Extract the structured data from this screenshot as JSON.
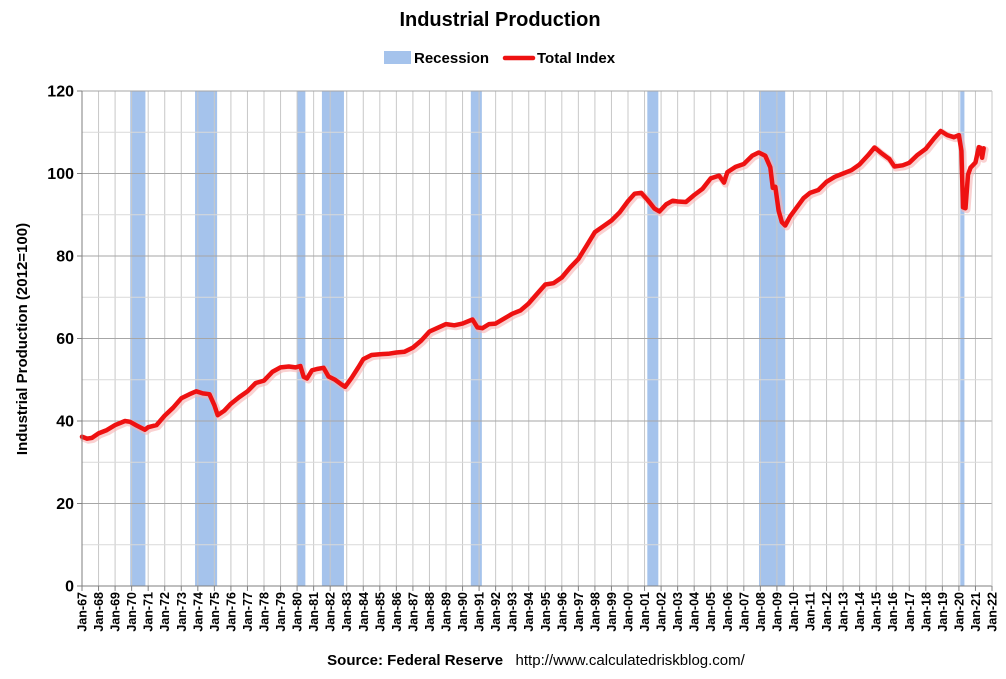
{
  "chart_data": {
    "type": "line",
    "title": "Industrial Production",
    "ylabel": "Industrial Production (2012=100)",
    "xlabel": "",
    "ylim": [
      0,
      120
    ],
    "yticks": [
      0,
      20,
      40,
      60,
      80,
      100,
      120
    ],
    "xlim": [
      1967.0,
      2022.0
    ],
    "xtick_labels": [
      "Jan-67",
      "Jan-68",
      "Jan-69",
      "Jan-70",
      "Jan-71",
      "Jan-72",
      "Jan-73",
      "Jan-74",
      "Jan-75",
      "Jan-76",
      "Jan-77",
      "Jan-78",
      "Jan-79",
      "Jan-80",
      "Jan-81",
      "Jan-82",
      "Jan-83",
      "Jan-84",
      "Jan-85",
      "Jan-86",
      "Jan-87",
      "Jan-88",
      "Jan-89",
      "Jan-90",
      "Jan-91",
      "Jan-92",
      "Jan-93",
      "Jan-94",
      "Jan-95",
      "Jan-96",
      "Jan-97",
      "Jan-98",
      "Jan-99",
      "Jan-00",
      "Jan-01",
      "Jan-02",
      "Jan-03",
      "Jan-04",
      "Jan-05",
      "Jan-06",
      "Jan-07",
      "Jan-08",
      "Jan-09",
      "Jan-10",
      "Jan-11",
      "Jan-12",
      "Jan-13",
      "Jan-14",
      "Jan-15",
      "Jan-16",
      "Jan-17",
      "Jan-18",
      "Jan-19",
      "Jan-20",
      "Jan-21",
      "Jan-22"
    ],
    "grid": true,
    "legend": {
      "placement": "top-center",
      "recession_label": "Recession",
      "series_label": "Total Index"
    },
    "colors": {
      "recession": "#a5c3ec",
      "line": "#ee1111",
      "grid": "#c8c8c8",
      "axis": "#7f7f7f"
    },
    "recessions": [
      [
        1969.917,
        1970.833
      ],
      [
        1973.833,
        1975.167
      ],
      [
        1980.0,
        1980.5
      ],
      [
        1981.5,
        1982.833
      ],
      [
        1990.5,
        1991.167
      ],
      [
        2001.167,
        2001.833
      ],
      [
        2007.917,
        2009.5
      ],
      [
        2020.083,
        2020.333
      ]
    ],
    "series": [
      {
        "name": "Total Index",
        "points": [
          [
            1967.0,
            36.2
          ],
          [
            1967.3,
            35.7
          ],
          [
            1967.6,
            35.9
          ],
          [
            1968.0,
            37.0
          ],
          [
            1968.5,
            37.8
          ],
          [
            1969.0,
            39.0
          ],
          [
            1969.6,
            40.0
          ],
          [
            1969.9,
            39.8
          ],
          [
            1970.3,
            38.9
          ],
          [
            1970.8,
            37.9
          ],
          [
            1971.0,
            38.5
          ],
          [
            1971.5,
            39.0
          ],
          [
            1972.0,
            41.3
          ],
          [
            1972.5,
            43.2
          ],
          [
            1973.0,
            45.5
          ],
          [
            1973.5,
            46.5
          ],
          [
            1973.9,
            47.2
          ],
          [
            1974.3,
            46.7
          ],
          [
            1974.7,
            46.5
          ],
          [
            1975.0,
            43.8
          ],
          [
            1975.2,
            41.4
          ],
          [
            1975.6,
            42.5
          ],
          [
            1976.0,
            44.2
          ],
          [
            1976.5,
            45.8
          ],
          [
            1977.0,
            47.2
          ],
          [
            1977.5,
            49.2
          ],
          [
            1978.0,
            49.8
          ],
          [
            1978.5,
            51.9
          ],
          [
            1979.0,
            53.0
          ],
          [
            1979.5,
            53.2
          ],
          [
            1979.9,
            53.0
          ],
          [
            1980.2,
            53.3
          ],
          [
            1980.4,
            50.7
          ],
          [
            1980.6,
            50.3
          ],
          [
            1980.9,
            52.3
          ],
          [
            1981.2,
            52.6
          ],
          [
            1981.6,
            52.9
          ],
          [
            1981.9,
            50.8
          ],
          [
            1982.3,
            50.0
          ],
          [
            1982.7,
            48.8
          ],
          [
            1982.9,
            48.3
          ],
          [
            1983.3,
            50.5
          ],
          [
            1983.7,
            53.0
          ],
          [
            1984.0,
            55.0
          ],
          [
            1984.5,
            56.0
          ],
          [
            1985.0,
            56.2
          ],
          [
            1985.5,
            56.3
          ],
          [
            1986.0,
            56.6
          ],
          [
            1986.5,
            56.8
          ],
          [
            1987.0,
            57.8
          ],
          [
            1987.5,
            59.5
          ],
          [
            1988.0,
            61.7
          ],
          [
            1988.5,
            62.6
          ],
          [
            1989.0,
            63.5
          ],
          [
            1989.5,
            63.2
          ],
          [
            1990.0,
            63.6
          ],
          [
            1990.6,
            64.6
          ],
          [
            1990.9,
            62.7
          ],
          [
            1991.2,
            62.5
          ],
          [
            1991.6,
            63.5
          ],
          [
            1992.0,
            63.6
          ],
          [
            1992.5,
            64.8
          ],
          [
            1993.0,
            66.0
          ],
          [
            1993.5,
            66.8
          ],
          [
            1994.0,
            68.5
          ],
          [
            1994.5,
            70.8
          ],
          [
            1995.0,
            73.1
          ],
          [
            1995.5,
            73.4
          ],
          [
            1996.0,
            74.8
          ],
          [
            1996.5,
            77.2
          ],
          [
            1997.0,
            79.3
          ],
          [
            1997.5,
            82.5
          ],
          [
            1998.0,
            85.8
          ],
          [
            1998.5,
            87.2
          ],
          [
            1999.0,
            88.6
          ],
          [
            1999.5,
            90.6
          ],
          [
            2000.0,
            93.3
          ],
          [
            2000.4,
            95.1
          ],
          [
            2000.8,
            95.3
          ],
          [
            2001.2,
            93.5
          ],
          [
            2001.6,
            91.5
          ],
          [
            2001.9,
            90.8
          ],
          [
            2002.3,
            92.5
          ],
          [
            2002.7,
            93.4
          ],
          [
            2003.0,
            93.2
          ],
          [
            2003.5,
            93.1
          ],
          [
            2004.0,
            94.8
          ],
          [
            2004.5,
            96.3
          ],
          [
            2005.0,
            98.8
          ],
          [
            2005.5,
            99.5
          ],
          [
            2005.8,
            97.8
          ],
          [
            2006.0,
            100.3
          ],
          [
            2006.5,
            101.6
          ],
          [
            2007.0,
            102.3
          ],
          [
            2007.5,
            104.3
          ],
          [
            2007.9,
            105.1
          ],
          [
            2008.3,
            104.3
          ],
          [
            2008.6,
            101.5
          ],
          [
            2008.75,
            96.5
          ],
          [
            2008.9,
            96.8
          ],
          [
            2009.1,
            91.0
          ],
          [
            2009.3,
            88.2
          ],
          [
            2009.5,
            87.4
          ],
          [
            2009.8,
            89.6
          ],
          [
            2010.2,
            91.8
          ],
          [
            2010.6,
            94.0
          ],
          [
            2011.0,
            95.3
          ],
          [
            2011.5,
            96.0
          ],
          [
            2012.0,
            98.0
          ],
          [
            2012.5,
            99.2
          ],
          [
            2013.0,
            100.0
          ],
          [
            2013.5,
            100.8
          ],
          [
            2014.0,
            102.2
          ],
          [
            2014.5,
            104.4
          ],
          [
            2014.9,
            106.3
          ],
          [
            2015.3,
            105.0
          ],
          [
            2015.8,
            103.5
          ],
          [
            2016.1,
            101.7
          ],
          [
            2016.6,
            102.0
          ],
          [
            2017.0,
            102.6
          ],
          [
            2017.5,
            104.5
          ],
          [
            2018.0,
            106.0
          ],
          [
            2018.5,
            108.5
          ],
          [
            2018.9,
            110.3
          ],
          [
            2019.3,
            109.3
          ],
          [
            2019.7,
            108.8
          ],
          [
            2020.0,
            109.3
          ],
          [
            2020.15,
            105.5
          ],
          [
            2020.25,
            91.8
          ],
          [
            2020.4,
            91.6
          ],
          [
            2020.55,
            99.7
          ],
          [
            2020.7,
            101.4
          ],
          [
            2021.0,
            102.7
          ],
          [
            2021.2,
            106.4
          ],
          [
            2021.3,
            106.2
          ],
          [
            2021.4,
            103.8
          ],
          [
            2021.5,
            106.1
          ]
        ]
      }
    ]
  },
  "footer": {
    "source_label": "Source: Federal Reserve",
    "url": "http://www.calculatedriskblog.com/"
  }
}
